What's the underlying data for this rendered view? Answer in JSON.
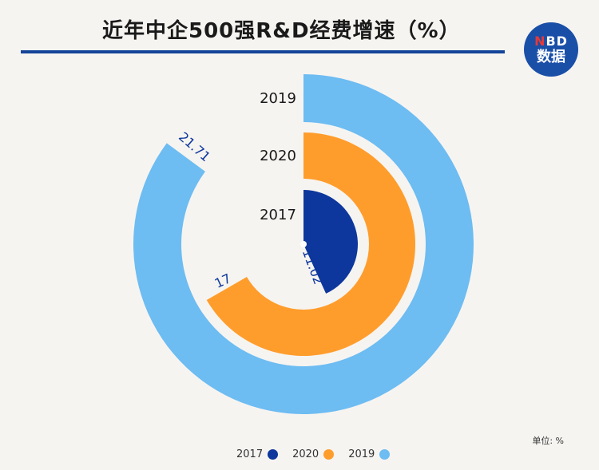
{
  "header": {
    "title": "近年中企500强R&D经费增速（%）"
  },
  "logo": {
    "top_text": "NBD",
    "bottom_text": "数据"
  },
  "unit_label": "单位: %",
  "colors": {
    "2017": "#0d379c",
    "2020": "#ff9d2c",
    "2019": "#6dbcf2",
    "title_rule": "#14449a"
  },
  "chart_data": {
    "type": "radial_bar",
    "title": "近年中企500强R&D经费增速（%）",
    "unit": "%",
    "series": [
      {
        "name": "2017",
        "value": 11.02
      },
      {
        "name": "2020",
        "value": 17
      },
      {
        "name": "2019",
        "value": 21.71
      }
    ],
    "legend": {
      "position": "bottom-center",
      "items": [
        "2017",
        "2020",
        "2019"
      ]
    }
  }
}
